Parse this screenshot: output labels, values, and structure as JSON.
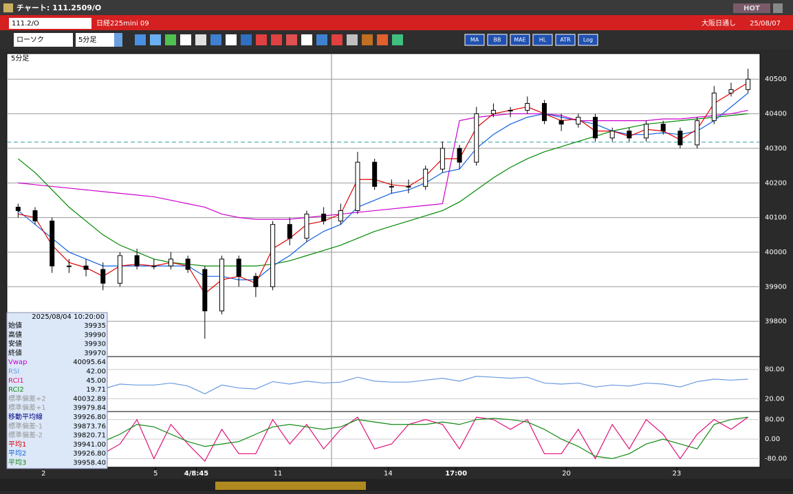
{
  "window": {
    "title": "チャート: 111.2509/O",
    "hot": "HOT"
  },
  "header": {
    "code": "111.2/O",
    "name": "日経225mini 09",
    "session": "大阪日通し",
    "date": "25/08/07"
  },
  "toolbar": {
    "chart_type": "ローソク",
    "interval": "5分足",
    "buttons": [
      "MA",
      "BB",
      "MAE",
      "HL",
      "ATR",
      "Log"
    ]
  },
  "chart": {
    "type": "candlestick",
    "label": "5分足",
    "xticks": [
      {
        "value": 2,
        "label": "2"
      },
      {
        "value": 8.6,
        "label": "5"
      },
      {
        "value": 11,
        "label": "4/8:45"
      },
      {
        "value": 15.8,
        "label": "11"
      },
      {
        "value": 22.3,
        "label": "14"
      },
      {
        "value": 26.3,
        "label": "17:00"
      },
      {
        "value": 32.8,
        "label": "20"
      },
      {
        "value": 39.3,
        "label": "23"
      }
    ],
    "price": {
      "ylim": [
        39700,
        40570
      ],
      "yticks": [
        39800,
        39900,
        40000,
        40100,
        40200,
        40300,
        40400,
        40500
      ],
      "reference_line": 40318,
      "open": [
        40130,
        40120,
        40090,
        39960,
        39960,
        39950,
        39910,
        39990,
        39960,
        39960,
        39980,
        39950,
        39830,
        39980,
        39930,
        39900,
        40080,
        40040,
        40110,
        40090,
        40120,
        40260,
        40190,
        40190,
        40190,
        40240,
        40300,
        40260,
        40400,
        40410,
        40410,
        40430,
        40380,
        40370,
        40390,
        40330,
        40350,
        40330,
        40370,
        40350,
        40310,
        40380,
        40460,
        40470
      ],
      "high": [
        40140,
        40130,
        40100,
        39980,
        39980,
        39970,
        40000,
        40010,
        39980,
        40000,
        39990,
        39960,
        39990,
        39990,
        39940,
        40090,
        40100,
        40120,
        40130,
        40140,
        40290,
        40270,
        40210,
        40210,
        40250,
        40320,
        40310,
        40420,
        40430,
        40420,
        40450,
        40440,
        40400,
        40400,
        40400,
        40360,
        40360,
        40380,
        40380,
        40360,
        40390,
        40480,
        40490,
        40530
      ],
      "low": [
        40100,
        40080,
        39940,
        39940,
        39930,
        39890,
        39900,
        39950,
        39950,
        39950,
        39940,
        39750,
        39820,
        39900,
        39870,
        39890,
        40020,
        40030,
        40080,
        40080,
        40110,
        40180,
        40170,
        40170,
        40180,
        40230,
        40240,
        40250,
        40390,
        40390,
        40400,
        40370,
        40350,
        40360,
        40320,
        40320,
        40320,
        40320,
        40340,
        40300,
        40300,
        40370,
        40450,
        40460
      ],
      "close": [
        40120,
        40090,
        39960,
        39960,
        39950,
        39910,
        39990,
        39960,
        39960,
        39980,
        39950,
        39830,
        39980,
        39930,
        39900,
        40080,
        40040,
        40110,
        40090,
        40120,
        40260,
        40190,
        40190,
        40190,
        40240,
        40300,
        40260,
        40400,
        40410,
        40410,
        40430,
        40380,
        40370,
        40390,
        40330,
        40350,
        40330,
        40370,
        40350,
        40310,
        40380,
        40460,
        40470,
        40500
      ],
      "series": [
        {
          "color": "#cc00cc",
          "values": [
            40200,
            40195,
            40190,
            40185,
            40180,
            40175,
            40170,
            40165,
            40160,
            40150,
            40140,
            40130,
            40110,
            40100,
            40095,
            40095,
            40095,
            40100,
            40105,
            40110,
            40115,
            40120,
            40125,
            40130,
            40135,
            40140,
            40380,
            40390,
            40395,
            40400,
            40400,
            40400,
            40395,
            40380,
            40380,
            40380,
            40380,
            40380,
            40385,
            40385,
            40390,
            40395,
            40400,
            40410
          ]
        },
        {
          "color": "#008800",
          "values": [
            40270,
            40230,
            40180,
            40130,
            40090,
            40050,
            40020,
            40000,
            39980,
            39970,
            39965,
            39960,
            39960,
            39960,
            39960,
            39965,
            39975,
            39990,
            40005,
            40020,
            40040,
            40060,
            40075,
            40090,
            40105,
            40120,
            40145,
            40180,
            40215,
            40245,
            40270,
            40290,
            40305,
            40320,
            40335,
            40350,
            40360,
            40370,
            40375,
            40380,
            40385,
            40390,
            40395,
            40400
          ]
        },
        {
          "color": "#1060e0",
          "values": [
            40120,
            40080,
            40040,
            40000,
            39980,
            39960,
            39960,
            39960,
            39960,
            39960,
            39960,
            39930,
            39930,
            39920,
            39920,
            39960,
            39990,
            40030,
            40060,
            40080,
            40130,
            40150,
            40170,
            40180,
            40200,
            40230,
            40240,
            40300,
            40340,
            40370,
            40390,
            40400,
            40390,
            40380,
            40370,
            40350,
            40340,
            40340,
            40345,
            40340,
            40350,
            40380,
            40420,
            40460
          ]
        },
        {
          "color": "#e00000",
          "values": [
            40110,
            40100,
            40020,
            39970,
            39955,
            39930,
            39960,
            39965,
            39960,
            39970,
            39960,
            39880,
            39920,
            39930,
            39910,
            40010,
            40040,
            40080,
            40090,
            40110,
            40210,
            40210,
            40195,
            40190,
            40220,
            40270,
            40270,
            40360,
            40400,
            40410,
            40420,
            40400,
            40380,
            40385,
            40350,
            40350,
            40335,
            40355,
            40350,
            40325,
            40355,
            40430,
            40460,
            40490
          ]
        }
      ]
    },
    "rsi": {
      "ylim": [
        -5,
        105
      ],
      "yticks": [
        {
          "value": 80,
          "label": "80.00"
        },
        {
          "value": 20,
          "label": "20.00"
        }
      ],
      "series": [
        {
          "color": "#6a9ae0",
          "values": [
            52,
            48,
            40,
            45,
            46,
            40,
            50,
            48,
            48,
            52,
            46,
            30,
            48,
            42,
            40,
            55,
            50,
            56,
            52,
            54,
            64,
            56,
            54,
            54,
            58,
            62,
            56,
            66,
            64,
            62,
            64,
            52,
            50,
            52,
            44,
            48,
            46,
            52,
            50,
            44,
            55,
            60,
            58,
            60
          ]
        }
      ]
    },
    "rci": {
      "ylim": [
        -115,
        110
      ],
      "yticks": [
        {
          "value": 80,
          "label": "80.00"
        },
        {
          "value": 0,
          "label": "0.00"
        },
        {
          "value": -80,
          "label": "-80.00"
        }
      ],
      "series": [
        {
          "color": "#e0107a",
          "values": [
            80,
            -40,
            -80,
            40,
            80,
            -60,
            -20,
            80,
            -80,
            60,
            -20,
            -90,
            40,
            -60,
            -60,
            80,
            -20,
            60,
            -40,
            40,
            90,
            -40,
            -20,
            60,
            80,
            60,
            -40,
            90,
            80,
            40,
            80,
            -60,
            -60,
            40,
            -80,
            60,
            -40,
            80,
            20,
            -80,
            20,
            80,
            40,
            90
          ]
        },
        {
          "color": "#108810",
          "values": [
            90,
            60,
            30,
            0,
            -20,
            -10,
            20,
            60,
            50,
            20,
            -10,
            -30,
            -20,
            -10,
            20,
            50,
            60,
            50,
            40,
            50,
            80,
            70,
            60,
            60,
            60,
            70,
            60,
            80,
            85,
            80,
            70,
            40,
            0,
            -30,
            -70,
            -80,
            -60,
            -20,
            0,
            -20,
            -40,
            60,
            80,
            90
          ]
        }
      ]
    }
  },
  "info_panel": {
    "datetime": "2025/08/04 10:20:00",
    "rows": [
      {
        "label": "始値",
        "value": "39935",
        "color": "#000000"
      },
      {
        "label": "高値",
        "value": "39990",
        "color": "#000000"
      },
      {
        "label": "安値",
        "value": "39930",
        "color": "#000000"
      },
      {
        "label": "終値",
        "value": "39970",
        "color": "#000000"
      },
      {
        "label": "Vwap",
        "value": "40095.64",
        "color": "#cc00cc"
      },
      {
        "label": "RSI",
        "value": "42.00",
        "color": "#6a9ae0"
      },
      {
        "label": "RCI1",
        "value": "45.00",
        "color": "#e0107a"
      },
      {
        "label": "RCI2",
        "value": "19.71",
        "color": "#108810"
      },
      {
        "label": "標準偏差+2",
        "value": "40032.89",
        "color": "#999999"
      },
      {
        "label": "標準偏差+1",
        "value": "39979.84",
        "color": "#999999"
      },
      {
        "label": "移動平均線",
        "value": "39926.80",
        "color": "#000080"
      },
      {
        "label": "標準偏差-1",
        "value": "39873.76",
        "color": "#999999"
      },
      {
        "label": "標準偏差-2",
        "value": "39820.71",
        "color": "#999999"
      },
      {
        "label": "平均1",
        "value": "39941.00",
        "color": "#e00000"
      },
      {
        "label": "平均2",
        "value": "39926.80",
        "color": "#1060e0"
      },
      {
        "label": "平均3",
        "value": "39958.40",
        "color": "#108810"
      }
    ]
  }
}
